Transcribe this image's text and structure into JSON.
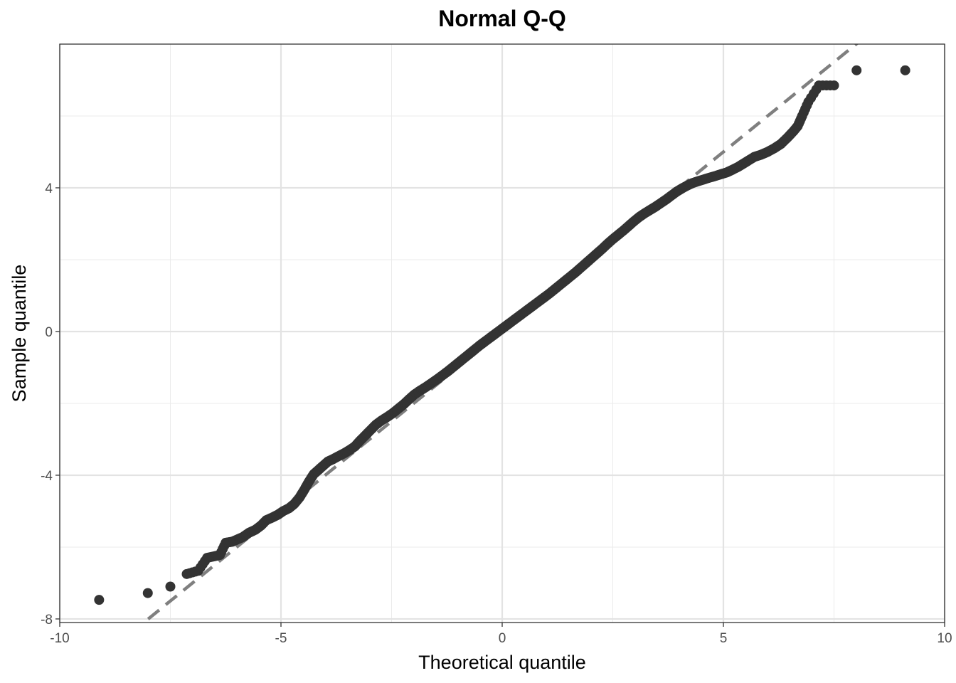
{
  "chart_data": {
    "type": "scatter",
    "title": "Normal Q-Q",
    "xlabel": "Theoretical quantile",
    "ylabel": "Sample quantile",
    "xlim": [
      -10,
      10
    ],
    "ylim": [
      -8.1,
      8.0
    ],
    "x_ticks": [
      -10,
      -5,
      0,
      5,
      10
    ],
    "x_tick_labels": [
      "-10",
      "-5",
      "0",
      "5",
      "10"
    ],
    "y_ticks": [
      -8,
      -4,
      0,
      4
    ],
    "y_tick_labels": [
      "-8",
      "-4",
      "0",
      "4"
    ],
    "grid": true,
    "reference_line": {
      "style": "dashed",
      "color": "#7f7f7f",
      "slope": 1.0,
      "intercept": 0.0
    },
    "point_color": "#333333",
    "line_color": "#7f7f7f",
    "points": [
      [
        -9.11,
        -7.47
      ],
      [
        -8.01,
        -7.28
      ],
      [
        -7.5,
        -7.1
      ],
      [
        -7.13,
        -6.75
      ],
      [
        -6.87,
        -6.66
      ],
      [
        -6.67,
        -6.3
      ],
      [
        -6.52,
        -6.26
      ],
      [
        -6.38,
        -6.22
      ],
      [
        -6.25,
        -5.88
      ],
      [
        -6.1,
        -5.85
      ],
      [
        -5.97,
        -5.78
      ],
      [
        -5.86,
        -5.72
      ],
      [
        -5.72,
        -5.6
      ],
      [
        -5.58,
        -5.52
      ],
      [
        -5.45,
        -5.4
      ],
      [
        -5.33,
        -5.25
      ],
      [
        -5.2,
        -5.18
      ],
      [
        -5.07,
        -5.1
      ],
      [
        -4.95,
        -5.0
      ],
      [
        -4.82,
        -4.92
      ],
      [
        -4.7,
        -4.8
      ],
      [
        -4.58,
        -4.62
      ],
      [
        -4.47,
        -4.4
      ],
      [
        -4.37,
        -4.18
      ],
      [
        -4.26,
        -3.97
      ],
      [
        -4.15,
        -3.85
      ],
      [
        -4.05,
        -3.74
      ],
      [
        -3.94,
        -3.62
      ],
      [
        -3.82,
        -3.55
      ],
      [
        -3.7,
        -3.47
      ],
      [
        -3.57,
        -3.39
      ],
      [
        -3.45,
        -3.3
      ],
      [
        -3.33,
        -3.2
      ],
      [
        -3.22,
        -3.05
      ],
      [
        -3.1,
        -2.9
      ],
      [
        -2.98,
        -2.75
      ],
      [
        -2.86,
        -2.6
      ],
      [
        -2.73,
        -2.48
      ],
      [
        -2.6,
        -2.38
      ],
      [
        -2.47,
        -2.27
      ],
      [
        -2.35,
        -2.15
      ],
      [
        -2.22,
        -2.02
      ],
      [
        -2.1,
        -1.88
      ],
      [
        -1.98,
        -1.75
      ],
      [
        -1.86,
        -1.65
      ],
      [
        -1.73,
        -1.55
      ],
      [
        -1.6,
        -1.44
      ],
      [
        -1.47,
        -1.33
      ],
      [
        -1.35,
        -1.22
      ],
      [
        -1.22,
        -1.1
      ],
      [
        -1.1,
        -0.98
      ],
      [
        -0.98,
        -0.86
      ],
      [
        -0.86,
        -0.74
      ],
      [
        -0.74,
        -0.62
      ],
      [
        -0.62,
        -0.5
      ],
      [
        -0.5,
        -0.38
      ],
      [
        -0.38,
        -0.27
      ],
      [
        -0.26,
        -0.16
      ],
      [
        -0.14,
        -0.05
      ],
      [
        -0.02,
        0.06
      ],
      [
        0.1,
        0.17
      ],
      [
        0.22,
        0.28
      ],
      [
        0.34,
        0.39
      ],
      [
        0.46,
        0.5
      ],
      [
        0.58,
        0.61
      ],
      [
        0.7,
        0.72
      ],
      [
        0.82,
        0.83
      ],
      [
        0.94,
        0.94
      ],
      [
        1.06,
        1.05
      ],
      [
        1.18,
        1.17
      ],
      [
        1.3,
        1.29
      ],
      [
        1.42,
        1.41
      ],
      [
        1.54,
        1.53
      ],
      [
        1.66,
        1.65
      ],
      [
        1.78,
        1.78
      ],
      [
        1.9,
        1.91
      ],
      [
        2.02,
        2.04
      ],
      [
        2.14,
        2.17
      ],
      [
        2.26,
        2.3
      ],
      [
        2.38,
        2.44
      ],
      [
        2.5,
        2.57
      ],
      [
        2.62,
        2.69
      ],
      [
        2.74,
        2.81
      ],
      [
        2.86,
        2.94
      ],
      [
        2.98,
        3.07
      ],
      [
        3.1,
        3.19
      ],
      [
        3.22,
        3.29
      ],
      [
        3.34,
        3.38
      ],
      [
        3.46,
        3.47
      ],
      [
        3.58,
        3.57
      ],
      [
        3.7,
        3.67
      ],
      [
        3.82,
        3.78
      ],
      [
        3.94,
        3.89
      ],
      [
        4.06,
        3.98
      ],
      [
        4.18,
        4.06
      ],
      [
        4.3,
        4.13
      ],
      [
        4.42,
        4.18
      ],
      [
        4.55,
        4.23
      ],
      [
        4.68,
        4.28
      ],
      [
        4.82,
        4.33
      ],
      [
        4.95,
        4.38
      ],
      [
        5.08,
        4.43
      ],
      [
        5.2,
        4.5
      ],
      [
        5.33,
        4.58
      ],
      [
        5.45,
        4.67
      ],
      [
        5.58,
        4.77
      ],
      [
        5.7,
        4.86
      ],
      [
        5.85,
        4.92
      ],
      [
        6.0,
        5.0
      ],
      [
        6.15,
        5.1
      ],
      [
        6.3,
        5.22
      ],
      [
        6.45,
        5.4
      ],
      [
        6.58,
        5.57
      ],
      [
        6.68,
        5.72
      ],
      [
        6.78,
        6.0
      ],
      [
        6.92,
        6.39
      ],
      [
        7.16,
        6.85
      ],
      [
        7.5,
        6.85
      ],
      [
        8.01,
        7.27
      ],
      [
        9.11,
        7.27
      ]
    ]
  }
}
